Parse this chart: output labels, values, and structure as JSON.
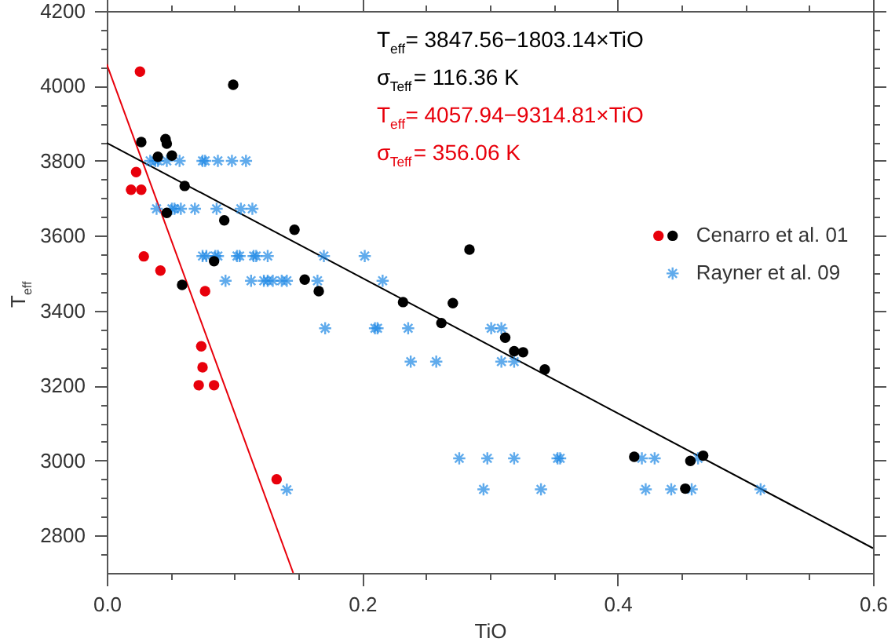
{
  "chart_data": {
    "type": "scatter",
    "xlabel": "TiO",
    "ylabel": "T$_{eff}$",
    "xlim": [
      0,
      0.6
    ],
    "ylim": [
      2700,
      4200
    ],
    "xticks": [
      {
        "value": 0,
        "label": "0.0"
      },
      {
        "value": 0.05,
        "label": null
      },
      {
        "value": 0.1,
        "label": null
      },
      {
        "value": 0.15,
        "label": null
      },
      {
        "value": 0.2,
        "label": "0.2"
      },
      {
        "value": 0.25,
        "label": null
      },
      {
        "value": 0.3,
        "label": null
      },
      {
        "value": 0.35,
        "label": null
      },
      {
        "value": 0.4,
        "label": "0.4"
      },
      {
        "value": 0.45,
        "label": null
      },
      {
        "value": 0.5,
        "label": null
      },
      {
        "value": 0.55,
        "label": null
      },
      {
        "value": 0.6,
        "label": "0.6"
      }
    ],
    "yticks": [
      {
        "value": 2750,
        "label": null
      },
      2800,
      {
        "value": 2850,
        "label": null
      },
      {
        "value": 2900,
        "label": null
      },
      {
        "value": 2950,
        "label": null
      },
      3000,
      {
        "value": 3050,
        "label": null
      },
      {
        "value": 3100,
        "label": null
      },
      {
        "value": 3150,
        "label": null
      },
      3200,
      {
        "value": 3250,
        "label": null
      },
      {
        "value": 3300,
        "label": null
      },
      {
        "value": 3350,
        "label": null
      },
      3400,
      {
        "value": 3450,
        "label": null
      },
      {
        "value": 3500,
        "label": null
      },
      {
        "value": 3550,
        "label": null
      },
      3600,
      {
        "value": 3650,
        "label": null
      },
      {
        "value": 3700,
        "label": null
      },
      {
        "value": 3750,
        "label": null
      },
      3800,
      {
        "value": 3850,
        "label": null
      },
      {
        "value": 3900,
        "label": null
      },
      {
        "value": 3950,
        "label": null
      },
      4000,
      {
        "value": 4050,
        "label": null
      },
      {
        "value": 4100,
        "label": null
      },
      {
        "value": 4150,
        "label": null
      },
      4200
    ],
    "grid": false,
    "legend": "right",
    "annotations": [
      "T$_{eff}$= 3847.56−1803.14×TiO",
      "σ$_{Teff}$= 116.36 K",
      "T$_{eff}$= 4057.94−9314.81×TiO",
      "σ$_{Teff}$= 356.06 K"
    ],
    "series": [
      {
        "name": "Cenarro et al. 01",
        "color": "#000000",
        "marker": "circle",
        "x": [
          0.027,
          0.046,
          0.047,
          0.04,
          0.051,
          0.061,
          0.099,
          0.047,
          0.092,
          0.147,
          0.084,
          0.059,
          0.155,
          0.166,
          0.232,
          0.284,
          0.271,
          0.262,
          0.312,
          0.319,
          0.326,
          0.343,
          0.413,
          0.457,
          0.467,
          0.453
        ],
        "values": [
          3850,
          3858,
          3846,
          3811,
          3814,
          3733,
          4003,
          3661,
          3641,
          3616,
          3532,
          3469,
          3483,
          3452,
          3423,
          3563,
          3420,
          3367,
          3328,
          3292,
          3289,
          3243,
          3010,
          2999,
          3013,
          2925
        ]
      },
      {
        "color": "#e8000b",
        "marker": "circle",
        "x": [
          0.026,
          0.023,
          0.019,
          0.027,
          0.029,
          0.042,
          0.077,
          0.074,
          0.075,
          0.072,
          0.084,
          0.133
        ],
        "values": [
          4038,
          3770,
          3723,
          3723,
          3545,
          3507,
          3452,
          3305,
          3249,
          3201,
          3201,
          2950
        ]
      },
      {
        "name": "Rayner et al. 09",
        "color": "#1e88e5",
        "marker": "cross",
        "x": [
          0.034,
          0.038,
          0.04,
          0.047,
          0.057,
          0.075,
          0.077,
          0.087,
          0.098,
          0.109,
          0.039,
          0.051,
          0.053,
          0.058,
          0.069,
          0.086,
          0.105,
          0.114,
          0.075,
          0.078,
          0.085,
          0.087,
          0.102,
          0.104,
          0.115,
          0.117,
          0.126,
          0.17,
          0.202,
          0.093,
          0.113,
          0.123,
          0.126,
          0.13,
          0.137,
          0.141,
          0.165,
          0.216,
          0.212,
          0.236,
          0.301,
          0.309,
          0.171,
          0.21,
          0.238,
          0.258,
          0.309,
          0.319,
          0.141,
          0.276,
          0.298,
          0.319,
          0.353,
          0.355,
          0.419,
          0.429,
          0.463,
          0.295,
          0.34,
          0.422,
          0.442,
          0.458,
          0.512
        ],
        "values": [
          3800,
          3800,
          3800,
          3800,
          3800,
          3800,
          3800,
          3800,
          3800,
          3800,
          3672,
          3672,
          3672,
          3672,
          3672,
          3672,
          3672,
          3672,
          3546,
          3546,
          3546,
          3546,
          3546,
          3546,
          3546,
          3546,
          3546,
          3546,
          3546,
          3480,
          3480,
          3480,
          3480,
          3480,
          3480,
          3480,
          3480,
          3480,
          3353,
          3353,
          3353,
          3353,
          3353,
          3353,
          3264,
          3264,
          3264,
          3264,
          2922,
          3006,
          3006,
          3006,
          3006,
          3006,
          3006,
          3006,
          3006,
          2923,
          2923,
          2923,
          2923,
          2923,
          2923
        ]
      },
      {
        "color": "#000000",
        "type": "line",
        "x": [
          0,
          0.6
        ],
        "values": [
          3848,
          2766
        ]
      },
      {
        "color": "#e8000b",
        "type": "line",
        "x": [
          0,
          0.146
        ],
        "values": [
          4058,
          2700
        ]
      }
    ]
  }
}
